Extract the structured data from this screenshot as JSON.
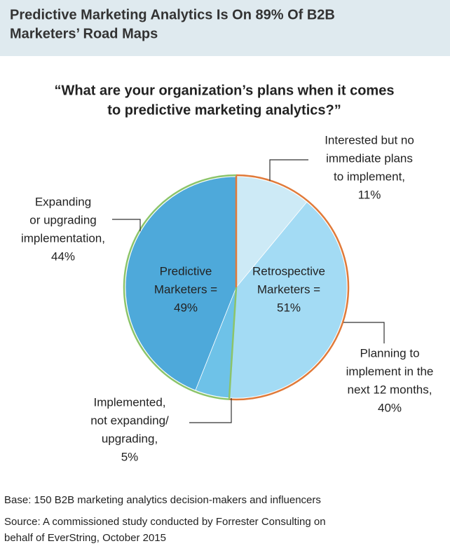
{
  "chart_data": {
    "type": "pie",
    "title_lines": [
      "Predictive Marketing Analytics Is On 89% Of B2B",
      "Marketers’ Road Maps"
    ],
    "question_lines": [
      "“What are your organization’s plans when it comes",
      "to predictive marketing analytics?”"
    ],
    "categories": [
      [
        "Interested but no",
        "immediate plans",
        "to implement,"
      ],
      [
        "Planning to",
        "implement in the",
        "next 12 months,"
      ],
      [
        "Implemented,",
        "not expanding/",
        "upgrading,"
      ],
      [
        "Expanding",
        "or upgrading",
        "implementation,"
      ]
    ],
    "values": [
      11,
      40,
      5,
      44
    ],
    "value_labels": [
      "11%",
      "40%",
      "5%",
      "44%"
    ],
    "colors": [
      "#cdeaf6",
      "#a3dbf4",
      "#6ec2e8",
      "#4ea9da"
    ],
    "groups": [
      {
        "label_lines": [
          "Retrospective",
          "Marketers ="
        ],
        "value": 51,
        "value_label": "51%",
        "color": "#e07a3a"
      },
      {
        "label_lines": [
          "Predictive",
          "Marketers ="
        ],
        "value": 49,
        "value_label": "49%",
        "color": "#8cc46a"
      }
    ],
    "notes": {
      "base": "Base: 150 B2B marketing analytics decision-makers and influencers",
      "source_lines": [
        "Source: A commissioned study conducted by Forrester Consulting on",
        "behalf of EverString, October 2015"
      ]
    }
  }
}
